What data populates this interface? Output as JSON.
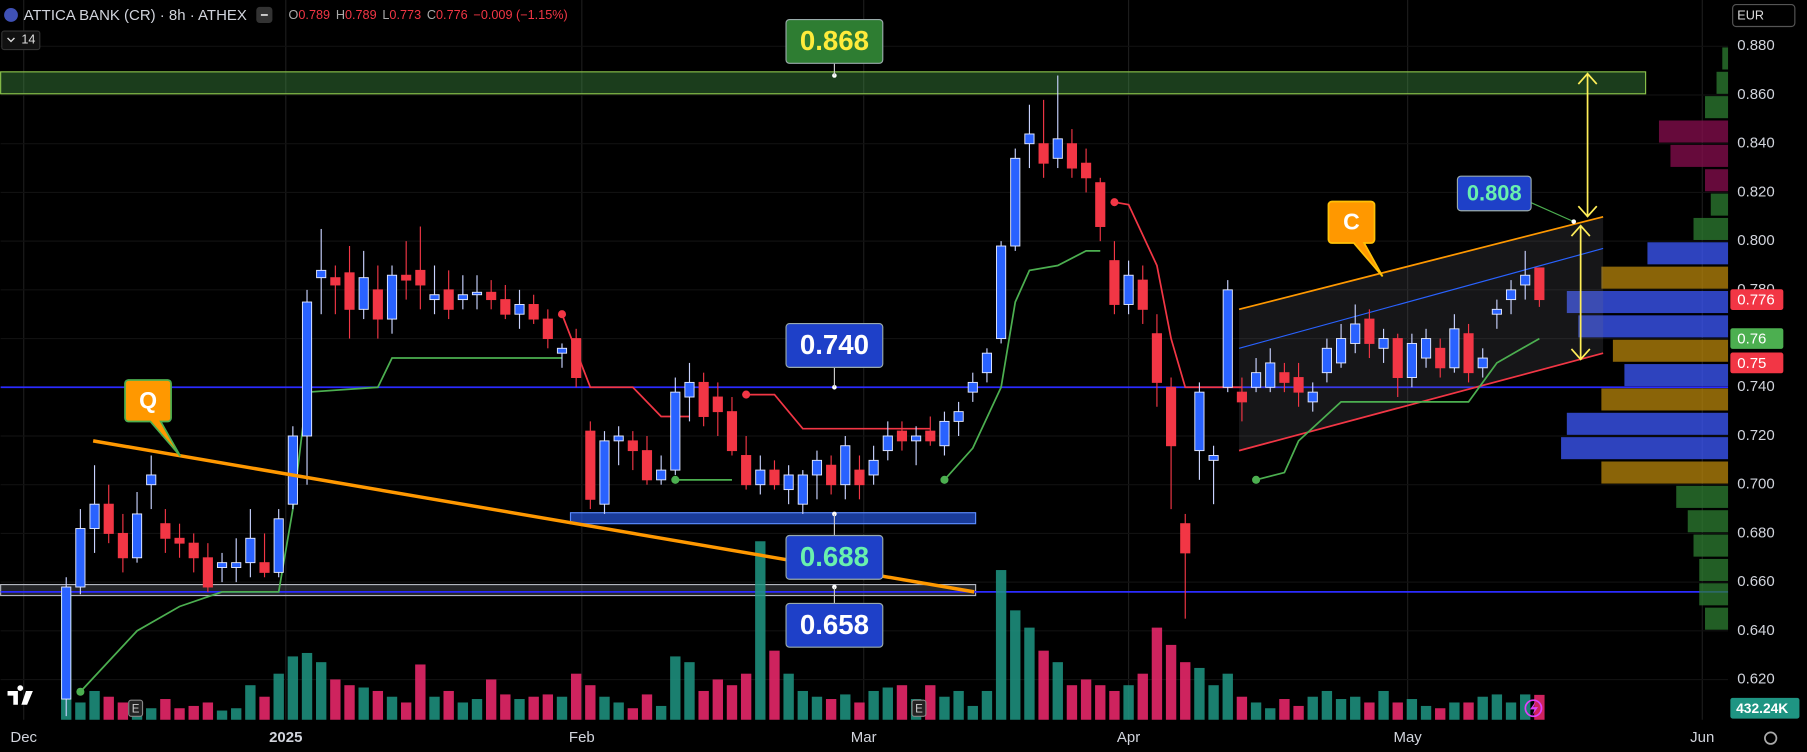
{
  "chart_data": {
    "type": "candlestick",
    "header": {
      "symbol": "ATTICA BANK (CR) · 8h · ATHEX",
      "ohlc_labels": [
        "O",
        "H",
        "L",
        "C"
      ],
      "ohlc": [
        0.789,
        0.789,
        0.773,
        0.776
      ],
      "change": {
        "value": -0.009,
        "label": "−0.009 (−1.15%)"
      },
      "indicator_count": 14,
      "currency": "EUR"
    },
    "up_color": "#2962ff",
    "down_color": "#f23645",
    "xlim": [
      -4.63,
      117.32
    ],
    "xticks": [
      {
        "value": -3.0,
        "label": "Dec"
      },
      {
        "value": 15.5,
        "label": "2025"
      },
      {
        "value": 36.4,
        "label": "Feb"
      },
      {
        "value": 56.3,
        "label": "Mar"
      },
      {
        "value": 75.0,
        "label": "Apr"
      },
      {
        "value": 94.7,
        "label": "May"
      },
      {
        "value": 115.5,
        "label": "Jun"
      }
    ],
    "ylim": [
      0.6035,
      0.899
    ],
    "yticks": [
      {
        "value": 0.62,
        "label": "0.620"
      },
      {
        "value": 0.64,
        "label": "0.640"
      },
      {
        "value": 0.66,
        "label": "0.660"
      },
      {
        "value": 0.68,
        "label": "0.680"
      },
      {
        "value": 0.7,
        "label": "0.700"
      },
      {
        "value": 0.72,
        "label": "0.720"
      },
      {
        "value": 0.74,
        "label": "0.740"
      },
      {
        "value": 0.76,
        "label": "0.760"
      },
      {
        "value": 0.78,
        "label": "0.780"
      },
      {
        "value": 0.8,
        "label": "0.800"
      },
      {
        "value": 0.82,
        "label": "0.820"
      },
      {
        "value": 0.84,
        "label": "0.840"
      },
      {
        "value": 0.86,
        "label": "0.860"
      },
      {
        "value": 0.88,
        "label": "0.880"
      }
    ],
    "candles": [
      [
        0.612,
        0.662,
        0.605,
        0.658
      ],
      [
        0.658,
        0.69,
        0.655,
        0.682
      ],
      [
        0.682,
        0.708,
        0.672,
        0.692
      ],
      [
        0.692,
        0.7,
        0.676,
        0.68
      ],
      [
        0.68,
        0.688,
        0.664,
        0.67
      ],
      [
        0.67,
        0.697,
        0.668,
        0.688
      ],
      [
        0.7,
        0.712,
        0.69,
        0.704
      ],
      [
        0.684,
        0.69,
        0.672,
        0.678
      ],
      [
        0.678,
        0.684,
        0.67,
        0.676
      ],
      [
        0.676,
        0.68,
        0.664,
        0.67
      ],
      [
        0.67,
        0.676,
        0.656,
        0.658
      ],
      [
        0.666,
        0.672,
        0.66,
        0.668
      ],
      [
        0.666,
        0.678,
        0.66,
        0.668
      ],
      [
        0.668,
        0.69,
        0.662,
        0.678
      ],
      [
        0.668,
        0.68,
        0.662,
        0.664
      ],
      [
        0.664,
        0.69,
        0.662,
        0.686
      ],
      [
        0.692,
        0.724,
        0.69,
        0.72
      ],
      [
        0.72,
        0.78,
        0.7,
        0.775
      ],
      [
        0.785,
        0.805,
        0.77,
        0.788
      ],
      [
        0.785,
        0.79,
        0.77,
        0.782
      ],
      [
        0.787,
        0.798,
        0.76,
        0.772
      ],
      [
        0.772,
        0.796,
        0.768,
        0.785
      ],
      [
        0.78,
        0.79,
        0.76,
        0.768
      ],
      [
        0.768,
        0.79,
        0.762,
        0.786
      ],
      [
        0.786,
        0.8,
        0.776,
        0.784
      ],
      [
        0.788,
        0.806,
        0.772,
        0.782
      ],
      [
        0.776,
        0.79,
        0.77,
        0.778
      ],
      [
        0.78,
        0.788,
        0.768,
        0.772
      ],
      [
        0.776,
        0.786,
        0.772,
        0.778
      ],
      [
        0.778,
        0.786,
        0.772,
        0.779
      ],
      [
        0.779,
        0.784,
        0.772,
        0.776
      ],
      [
        0.776,
        0.782,
        0.768,
        0.77
      ],
      [
        0.77,
        0.78,
        0.764,
        0.774
      ],
      [
        0.774,
        0.778,
        0.766,
        0.768
      ],
      [
        0.768,
        0.772,
        0.756,
        0.76
      ],
      [
        0.754,
        0.758,
        0.748,
        0.756
      ],
      [
        0.76,
        0.764,
        0.74,
        0.744
      ],
      [
        0.722,
        0.726,
        0.69,
        0.694
      ],
      [
        0.692,
        0.722,
        0.688,
        0.718
      ],
      [
        0.718,
        0.724,
        0.708,
        0.72
      ],
      [
        0.718,
        0.722,
        0.706,
        0.714
      ],
      [
        0.714,
        0.72,
        0.7,
        0.702
      ],
      [
        0.702,
        0.712,
        0.7,
        0.706
      ],
      [
        0.706,
        0.744,
        0.704,
        0.738
      ],
      [
        0.736,
        0.75,
        0.726,
        0.742
      ],
      [
        0.742,
        0.746,
        0.724,
        0.728
      ],
      [
        0.736,
        0.742,
        0.72,
        0.73
      ],
      [
        0.73,
        0.736,
        0.712,
        0.714
      ],
      [
        0.712,
        0.72,
        0.698,
        0.7
      ],
      [
        0.7,
        0.712,
        0.696,
        0.706
      ],
      [
        0.706,
        0.71,
        0.698,
        0.7
      ],
      [
        0.698,
        0.708,
        0.692,
        0.704
      ],
      [
        0.692,
        0.706,
        0.688,
        0.704
      ],
      [
        0.704,
        0.714,
        0.694,
        0.71
      ],
      [
        0.708,
        0.712,
        0.696,
        0.7
      ],
      [
        0.7,
        0.72,
        0.694,
        0.716
      ],
      [
        0.706,
        0.712,
        0.694,
        0.7
      ],
      [
        0.704,
        0.716,
        0.7,
        0.71
      ],
      [
        0.714,
        0.726,
        0.71,
        0.72
      ],
      [
        0.722,
        0.726,
        0.714,
        0.718
      ],
      [
        0.718,
        0.724,
        0.708,
        0.72
      ],
      [
        0.722,
        0.728,
        0.716,
        0.718
      ],
      [
        0.716,
        0.73,
        0.712,
        0.726
      ],
      [
        0.726,
        0.734,
        0.72,
        0.73
      ],
      [
        0.738,
        0.746,
        0.734,
        0.742
      ],
      [
        0.746,
        0.756,
        0.742,
        0.754
      ],
      [
        0.76,
        0.8,
        0.758,
        0.798
      ],
      [
        0.798,
        0.838,
        0.796,
        0.834
      ],
      [
        0.84,
        0.856,
        0.83,
        0.844
      ],
      [
        0.84,
        0.858,
        0.826,
        0.832
      ],
      [
        0.834,
        0.868,
        0.83,
        0.842
      ],
      [
        0.84,
        0.846,
        0.826,
        0.83
      ],
      [
        0.832,
        0.838,
        0.82,
        0.826
      ],
      [
        0.824,
        0.826,
        0.8,
        0.806
      ],
      [
        0.792,
        0.8,
        0.77,
        0.774
      ],
      [
        0.774,
        0.792,
        0.77,
        0.786
      ],
      [
        0.784,
        0.79,
        0.766,
        0.772
      ],
      [
        0.762,
        0.77,
        0.732,
        0.742
      ],
      [
        0.74,
        0.744,
        0.69,
        0.716
      ],
      [
        0.684,
        0.688,
        0.645,
        0.672
      ],
      [
        0.714,
        0.742,
        0.702,
        0.738
      ],
      [
        0.71,
        0.716,
        0.692,
        0.712
      ],
      [
        0.74,
        0.784,
        0.738,
        0.78
      ],
      [
        0.738,
        0.744,
        0.726,
        0.734
      ],
      [
        0.74,
        0.752,
        0.738,
        0.746
      ],
      [
        0.74,
        0.756,
        0.738,
        0.75
      ],
      [
        0.746,
        0.75,
        0.738,
        0.742
      ],
      [
        0.744,
        0.75,
        0.732,
        0.738
      ],
      [
        0.734,
        0.742,
        0.73,
        0.738
      ],
      [
        0.746,
        0.76,
        0.742,
        0.756
      ],
      [
        0.75,
        0.766,
        0.748,
        0.76
      ],
      [
        0.758,
        0.774,
        0.754,
        0.766
      ],
      [
        0.768,
        0.772,
        0.752,
        0.758
      ],
      [
        0.756,
        0.764,
        0.75,
        0.76
      ],
      [
        0.76,
        0.762,
        0.736,
        0.744
      ],
      [
        0.744,
        0.762,
        0.74,
        0.758
      ],
      [
        0.752,
        0.764,
        0.748,
        0.76
      ],
      [
        0.756,
        0.76,
        0.744,
        0.748
      ],
      [
        0.748,
        0.77,
        0.746,
        0.764
      ],
      [
        0.762,
        0.766,
        0.742,
        0.746
      ],
      [
        0.748,
        0.756,
        0.744,
        0.752
      ],
      [
        0.77,
        0.776,
        0.764,
        0.772
      ],
      [
        0.776,
        0.784,
        0.77,
        0.78
      ],
      [
        0.782,
        0.796,
        0.776,
        0.786
      ],
      [
        0.789,
        0.789,
        0.773,
        0.776
      ]
    ],
    "volume_ylim": [
      0,
      12500000
    ],
    "volume": [
      2200000,
      300000,
      500000,
      400000,
      300000,
      240000,
      200000,
      360000,
      200000,
      240000,
      300000,
      160000,
      200000,
      600000,
      400000,
      800000,
      1100000,
      1160000,
      1000000,
      700000,
      600000,
      560000,
      500000,
      400000,
      300000,
      960000,
      400000,
      500000,
      300000,
      360000,
      700000,
      440000,
      360000,
      400000,
      440000,
      400000,
      800000,
      600000,
      400000,
      300000,
      200000,
      440000,
      240000,
      1100000,
      1000000,
      500000,
      700000,
      600000,
      800000,
      3100000,
      1200000,
      800000,
      500000,
      400000,
      360000,
      440000,
      300000,
      500000,
      560000,
      600000,
      360000,
      600000,
      400000,
      500000,
      240000,
      500000,
      2600000,
      1900000,
      1600000,
      1200000,
      1000000,
      600000,
      700000,
      600000,
      500000,
      600000,
      800000,
      1600000,
      1300000,
      1000000,
      900000,
      600000,
      800000,
      400000,
      300000,
      200000,
      360000,
      240000,
      400000,
      500000,
      360000,
      400000,
      300000,
      500000,
      300000,
      360000,
      240000,
      200000,
      300000,
      300000,
      400000,
      440000,
      300000,
      440000,
      432240
    ],
    "volume_tag": {
      "value": 432240,
      "label": "432.24K"
    },
    "up_volume_color": "#1f9583",
    "down_volume_color": "#f2296e",
    "supertrend": [
      {
        "color": "#4caf50",
        "points": [
          [
            1,
            0.615
          ],
          [
            5,
            0.64
          ],
          [
            8,
            0.65
          ],
          [
            11,
            0.656
          ],
          [
            15,
            0.656
          ],
          [
            16,
            0.69
          ],
          [
            17,
            0.738
          ],
          [
            22,
            0.74
          ],
          [
            23,
            0.752
          ],
          [
            35,
            0.752
          ]
        ]
      },
      {
        "color": "#f23645",
        "points": [
          [
            35,
            0.77
          ],
          [
            37,
            0.74
          ],
          [
            40,
            0.74
          ],
          [
            42,
            0.728
          ],
          [
            44,
            0.728
          ]
        ]
      },
      {
        "color": "#4caf50",
        "points": [
          [
            43,
            0.702
          ],
          [
            47,
            0.702
          ]
        ]
      },
      {
        "color": "#f23645",
        "points": [
          [
            48,
            0.737
          ],
          [
            50,
            0.737
          ],
          [
            52,
            0.723
          ],
          [
            61,
            0.723
          ]
        ]
      },
      {
        "color": "#4caf50",
        "points": [
          [
            62,
            0.702
          ],
          [
            64,
            0.715
          ],
          [
            66,
            0.74
          ],
          [
            67,
            0.775
          ],
          [
            68,
            0.788
          ],
          [
            70,
            0.79
          ],
          [
            72,
            0.796
          ],
          [
            73,
            0.796
          ]
        ]
      },
      {
        "color": "#f23645",
        "points": [
          [
            74,
            0.816
          ],
          [
            75,
            0.815
          ],
          [
            77,
            0.79
          ],
          [
            78,
            0.76
          ],
          [
            79,
            0.74
          ],
          [
            83,
            0.74
          ]
        ]
      },
      {
        "color": "#4caf50",
        "points": [
          [
            84,
            0.702
          ],
          [
            86,
            0.705
          ],
          [
            87,
            0.718
          ],
          [
            90,
            0.734
          ],
          [
            99,
            0.734
          ],
          [
            101,
            0.75
          ],
          [
            104,
            0.76
          ]
        ]
      }
    ],
    "channel": {
      "upper": [
        [
          82.8,
          0.772
        ],
        [
          108.5,
          0.81
        ]
      ],
      "middle": [
        [
          82.8,
          0.756
        ],
        [
          108.5,
          0.797
        ]
      ],
      "lower": [
        [
          82.8,
          0.714
        ],
        [
          108.5,
          0.754
        ]
      ],
      "upper_color": "#ff9800",
      "middle_color": "#2962ff",
      "lower_color": "#f23645"
    },
    "trendline": {
      "points": [
        [
          1.9,
          0.718
        ],
        [
          64.1,
          0.656
        ]
      ],
      "color": "#ff9800"
    },
    "zones": [
      {
        "x": [
          -4.63,
          111.5
        ],
        "y": [
          0.8605,
          0.8695
        ],
        "fill": "rgba(76,175,80,0.35)",
        "stroke": "#8bc34a"
      },
      {
        "x": [
          -4.63,
          64.2
        ],
        "y": [
          0.6545,
          0.659
        ],
        "fill": "rgba(120,123,134,0.3)",
        "stroke": "#b2b5be"
      },
      {
        "x": [
          35.6,
          64.2
        ],
        "y": [
          0.684,
          0.6885
        ],
        "fill": "rgba(41,98,255,0.6)",
        "stroke": "#5b8cff"
      }
    ],
    "hlines": [
      {
        "value": 0.74,
        "color": "#2b2bff"
      },
      {
        "value": 0.656,
        "color": "#2b2bff"
      }
    ],
    "annotations": [
      {
        "value": 0.868,
        "color": "#ffeb3b",
        "bg": "#2e7d32"
      },
      {
        "value": 0.74,
        "label": "0.740",
        "color": "#ffffff",
        "bg": "#1e40c8"
      },
      {
        "value": 0.688,
        "color": "#69f0ae",
        "bg": "#1e40c8"
      },
      {
        "value": 0.658,
        "color": "#ffffff",
        "bg": "#1e40c8"
      },
      {
        "value": 0.808,
        "color": "#69f0ae",
        "bg": "#1e40c8"
      }
    ],
    "callouts": [
      "Q",
      "C"
    ],
    "events": [
      {
        "index": 4.9,
        "label": "E"
      },
      {
        "index": 60.2,
        "label": "E"
      }
    ],
    "price_tags": [
      {
        "value": 0.776,
        "color": "#f23645"
      },
      {
        "value": 0.76,
        "color": "#4caf50"
      },
      {
        "value": 0.75,
        "color": "#f23645"
      }
    ],
    "volume_profile": {
      "xlim": [
        0,
        150
      ],
      "prices": [
        0.64,
        0.65,
        0.66,
        0.67,
        0.68,
        0.69,
        0.7,
        0.71,
        0.72,
        0.73,
        0.74,
        0.75,
        0.76,
        0.77,
        0.78,
        0.79,
        0.8,
        0.81,
        0.82,
        0.83,
        0.84,
        0.85,
        0.86,
        0.87
      ],
      "values": [
        20,
        25,
        25,
        30,
        35,
        45,
        110,
        145,
        140,
        110,
        90,
        100,
        130,
        140,
        110,
        70,
        30,
        15,
        20,
        50,
        60,
        20,
        10,
        5
      ],
      "colors": [
        "#2e7d32",
        "#2e7d32",
        "#2e7d32",
        "#2e7d32",
        "#2e7d32",
        "#2e7d32",
        "#b8860b",
        "#3d5afe",
        "#3d5afe",
        "#b8860b",
        "#3d5afe",
        "#b8860b",
        "#3d5afe",
        "#3d5afe",
        "#b8860b",
        "#3d5afe",
        "#2e7d32",
        "#2e7d32",
        "#880e4f",
        "#880e4f",
        "#880e4f",
        "#2e7d32",
        "#2e7d32",
        "#2e7d32"
      ]
    }
  }
}
